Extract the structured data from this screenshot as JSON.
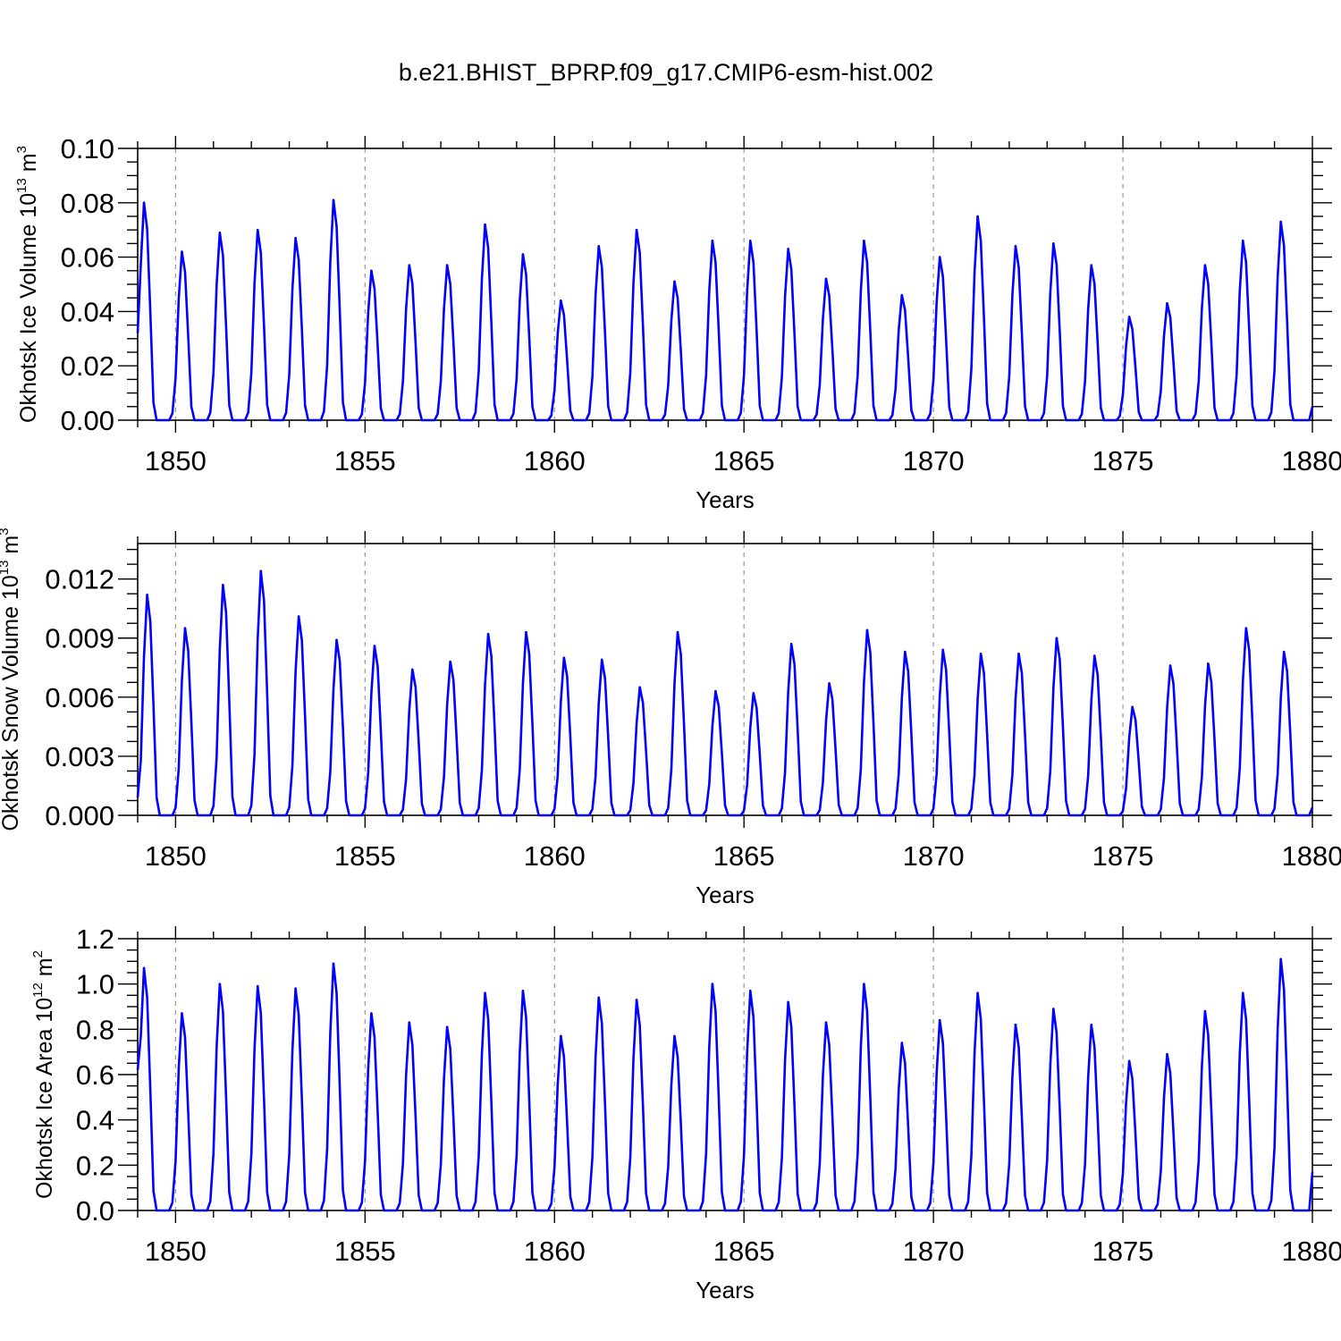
{
  "figure_title": "b.e21.BHIST_BPRP.f09_g17.CMIP6-esm-hist.002",
  "colors": {
    "series": "#0000ff",
    "axis": "#000000",
    "grid": "#999999"
  },
  "chart_data": [
    {
      "type": "line",
      "name": "ice-volume",
      "title": "",
      "xlabel": "Years",
      "ylabel": {
        "main": "Okhotsk Ice Volume 10",
        "exp": "13",
        "unit": " m",
        "unit_exp": "3"
      },
      "xlim": [
        1849,
        1880
      ],
      "ylim": [
        0,
        0.1
      ],
      "xticks": [
        1850,
        1855,
        1860,
        1865,
        1870,
        1875,
        1880
      ],
      "xtick_labels": [
        "1850",
        "1855",
        "1860",
        "1865",
        "1870",
        "1875",
        "1880"
      ],
      "yticks": [
        0,
        0.02,
        0.04,
        0.06,
        0.08,
        0.1
      ],
      "ytick_labels": [
        "0.00",
        "0.02",
        "0.04",
        "0.06",
        "0.08",
        "0.10"
      ],
      "start": 0.032,
      "end": 0.005,
      "peak_month": 2,
      "annual_peaks": [
        0.08,
        0.062,
        0.069,
        0.07,
        0.067,
        0.081,
        0.055,
        0.057,
        0.057,
        0.072,
        0.061,
        0.044,
        0.064,
        0.07,
        0.051,
        0.066,
        0.066,
        0.063,
        0.052,
        0.066,
        0.046,
        0.06,
        0.075,
        0.064,
        0.065,
        0.057,
        0.038,
        0.043,
        0.057,
        0.066,
        0.073
      ]
    },
    {
      "type": "line",
      "name": "snow-volume",
      "title": "",
      "xlabel": "Years",
      "ylabel": {
        "main": "Okhotsk Snow Volume 10",
        "exp": "13",
        "unit": " m",
        "unit_exp": "3"
      },
      "xlim": [
        1849,
        1880
      ],
      "ylim": [
        0,
        0.0138
      ],
      "xticks": [
        1850,
        1855,
        1860,
        1865,
        1870,
        1875,
        1880
      ],
      "xtick_labels": [
        "1850",
        "1855",
        "1860",
        "1865",
        "1870",
        "1875",
        "1880"
      ],
      "yticks": [
        0,
        0.003,
        0.006,
        0.009,
        0.012
      ],
      "ytick_labels": [
        "0.000",
        "0.003",
        "0.006",
        "0.009",
        "0.012"
      ],
      "start": 0.0009,
      "end": 0.0004,
      "peak_month": 3,
      "annual_peaks": [
        0.0112,
        0.0095,
        0.0117,
        0.0124,
        0.0101,
        0.0089,
        0.0086,
        0.0074,
        0.0078,
        0.0092,
        0.0093,
        0.008,
        0.0079,
        0.0065,
        0.0093,
        0.0063,
        0.0062,
        0.0087,
        0.0067,
        0.0094,
        0.0083,
        0.0084,
        0.0082,
        0.0082,
        0.009,
        0.0081,
        0.0055,
        0.0076,
        0.0077,
        0.0095,
        0.0083
      ]
    },
    {
      "type": "line",
      "name": "ice-area",
      "title": "",
      "xlabel": "Years",
      "ylabel": {
        "main": "Okhotsk Ice Area 10",
        "exp": "12",
        "unit": " m",
        "unit_exp": "2"
      },
      "xlim": [
        1849,
        1880
      ],
      "ylim": [
        0,
        1.2
      ],
      "xticks": [
        1850,
        1855,
        1860,
        1865,
        1870,
        1875,
        1880
      ],
      "xtick_labels": [
        "1850",
        "1855",
        "1860",
        "1865",
        "1870",
        "1875",
        "1880"
      ],
      "yticks": [
        0,
        0.2,
        0.4,
        0.6,
        0.8,
        1.0,
        1.2
      ],
      "ytick_labels": [
        "0.0",
        "0.2",
        "0.4",
        "0.6",
        "0.8",
        "1.0",
        "1.2"
      ],
      "start": 0.62,
      "end": 0.17,
      "peak_month": 2,
      "annual_peaks": [
        1.07,
        0.87,
        1.0,
        0.99,
        0.98,
        1.09,
        0.87,
        0.83,
        0.81,
        0.96,
        0.97,
        0.77,
        0.94,
        0.93,
        0.77,
        1.0,
        0.97,
        0.92,
        0.83,
        1.0,
        0.74,
        0.84,
        0.96,
        0.82,
        0.89,
        0.82,
        0.66,
        0.69,
        0.88,
        0.96,
        1.11
      ]
    }
  ]
}
